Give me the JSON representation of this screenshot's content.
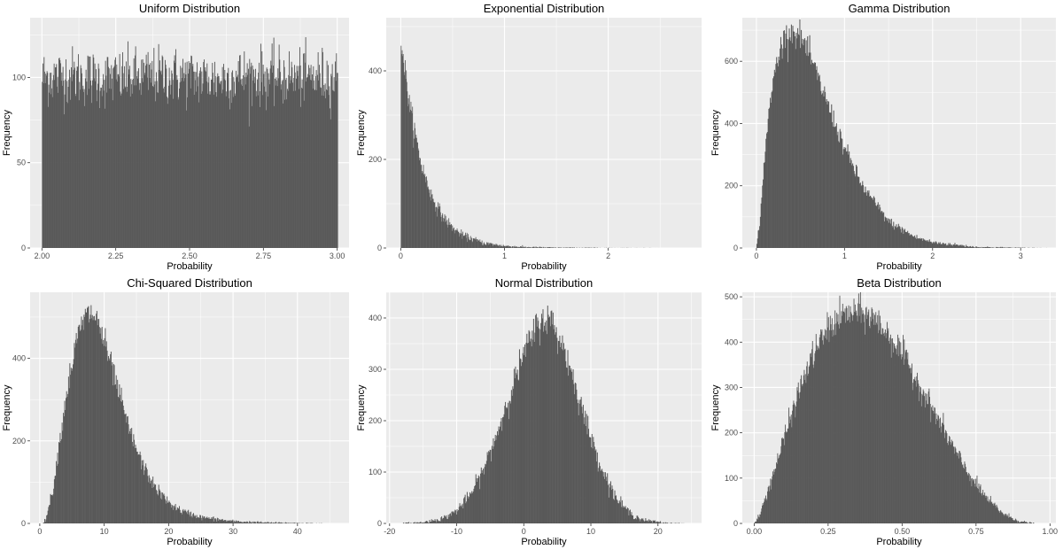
{
  "colors": {
    "panel_background": "#ebebeb",
    "grid_major": "#ffffff",
    "bar_fill": "#595959",
    "tick_text": "#4d4d4d"
  },
  "chart_data": [
    {
      "id": "uniform",
      "type": "histogram",
      "title": "Uniform Distribution",
      "xlabel": "Probability",
      "ylabel": "Frequency",
      "xlim": [
        1.96,
        3.04
      ],
      "ylim": [
        0,
        135
      ],
      "xticks": [
        2.0,
        2.25,
        2.5,
        2.75,
        3.0
      ],
      "xtick_labels": [
        "2.00",
        "2.25",
        "2.50",
        "2.75",
        "3.00"
      ],
      "yticks": [
        0,
        50,
        100
      ],
      "ytick_labels": [
        "0",
        "50",
        "100"
      ],
      "grid": true,
      "x_points": [
        2.0,
        2.1,
        2.2,
        2.3,
        2.4,
        2.5,
        2.6,
        2.7,
        2.8,
        2.9,
        3.0
      ],
      "density": [
        100,
        101,
        99,
        100,
        101,
        100,
        99,
        101,
        100,
        100,
        100
      ],
      "bin_width": 0.002
    },
    {
      "id": "exponential",
      "type": "histogram",
      "title": "Exponential Distribution",
      "xlabel": "Probability",
      "ylabel": "Frequency",
      "xlim": [
        -0.14,
        2.9
      ],
      "ylim": [
        0,
        520
      ],
      "xticks": [
        0,
        1,
        2
      ],
      "xtick_labels": [
        "0",
        "1",
        "2"
      ],
      "yticks": [
        0,
        200,
        400
      ],
      "ytick_labels": [
        "0",
        "200",
        "400"
      ],
      "grid": true,
      "x_points": [
        0,
        0.05,
        0.1,
        0.2,
        0.3,
        0.4,
        0.5,
        0.6,
        0.8,
        1.0,
        1.2,
        1.5,
        2.0,
        2.5
      ],
      "density": [
        480,
        380,
        300,
        185,
        115,
        72,
        45,
        28,
        11,
        4.5,
        1.8,
        0.6,
        0.1,
        0
      ],
      "bin_width": 0.005
    },
    {
      "id": "gamma",
      "type": "histogram",
      "title": "Gamma Distribution",
      "xlabel": "Probability",
      "ylabel": "Frequency",
      "xlim": [
        -0.16,
        3.4
      ],
      "ylim": [
        0,
        740
      ],
      "xticks": [
        0,
        1,
        2,
        3
      ],
      "xtick_labels": [
        "0",
        "1",
        "2",
        "3"
      ],
      "yticks": [
        0,
        200,
        400,
        600
      ],
      "ytick_labels": [
        "0",
        "200",
        "400",
        "600"
      ],
      "grid": true,
      "x_points": [
        0,
        0.05,
        0.1,
        0.2,
        0.3,
        0.4,
        0.5,
        0.6,
        0.8,
        1.0,
        1.2,
        1.5,
        1.8,
        2.0,
        2.5,
        3.0,
        3.3
      ],
      "density": [
        0,
        120,
        330,
        560,
        670,
        700,
        680,
        620,
        470,
        320,
        200,
        85,
        35,
        18,
        3,
        0.5,
        0
      ],
      "bin_width": 0.008
    },
    {
      "id": "chi-squared",
      "type": "histogram",
      "title": "Chi-Squared Distribution",
      "xlabel": "Probability",
      "ylabel": "Frequency",
      "xlim": [
        -1.5,
        48
      ],
      "ylim": [
        0,
        560
      ],
      "xticks": [
        0,
        10,
        20,
        30,
        40
      ],
      "xtick_labels": [
        "0",
        "10",
        "20",
        "30",
        "40"
      ],
      "yticks": [
        0,
        200,
        400
      ],
      "ytick_labels": [
        "0",
        "200",
        "400"
      ],
      "grid": true,
      "x_points": [
        0.5,
        1,
        2,
        3,
        4,
        5,
        6,
        7,
        8,
        9,
        10,
        12,
        14,
        16,
        18,
        20,
        22,
        25,
        30,
        35,
        44
      ],
      "density": [
        0,
        15,
        80,
        190,
        300,
        390,
        460,
        500,
        510,
        490,
        440,
        330,
        220,
        140,
        85,
        50,
        30,
        15,
        5,
        2,
        0
      ],
      "bin_width": 0.1
    },
    {
      "id": "normal",
      "type": "histogram",
      "title": "Normal Distribution",
      "xlabel": "Probability",
      "ylabel": "Frequency",
      "xlim": [
        -20.5,
        26.5
      ],
      "ylim": [
        0,
        450
      ],
      "xticks": [
        -20,
        -10,
        0,
        10,
        20
      ],
      "xtick_labels": [
        "-20",
        "-10",
        "0",
        "10",
        "20"
      ],
      "yticks": [
        0,
        100,
        200,
        300,
        400
      ],
      "ytick_labels": [
        "0",
        "100",
        "200",
        "300",
        "400"
      ],
      "grid": true,
      "x_points": [
        -18,
        -15,
        -12,
        -10,
        -8,
        -6,
        -4,
        -2,
        0,
        2,
        3,
        4,
        6,
        8,
        10,
        12,
        14,
        16,
        18,
        21,
        24
      ],
      "density": [
        0.5,
        2,
        10,
        25,
        55,
        105,
        175,
        255,
        330,
        385,
        400,
        395,
        340,
        255,
        165,
        95,
        45,
        18,
        6,
        1,
        0
      ],
      "bin_width": 0.1
    },
    {
      "id": "beta",
      "type": "histogram",
      "title": "Beta Distribution",
      "xlabel": "Probability",
      "ylabel": "Frequency",
      "xlim": [
        -0.04,
        1.02
      ],
      "ylim": [
        0,
        510
      ],
      "xticks": [
        0,
        0.25,
        0.5,
        0.75,
        1.0
      ],
      "xtick_labels": [
        "0.00",
        "0.25",
        "0.50",
        "0.75",
        "1.00"
      ],
      "yticks": [
        0,
        100,
        200,
        300,
        400,
        500
      ],
      "ytick_labels": [
        "0",
        "100",
        "200",
        "300",
        "400",
        "500"
      ],
      "grid": true,
      "x_points": [
        0,
        0.02,
        0.05,
        0.1,
        0.15,
        0.2,
        0.25,
        0.3,
        0.35,
        0.4,
        0.45,
        0.5,
        0.55,
        0.6,
        0.65,
        0.7,
        0.75,
        0.8,
        0.85,
        0.9,
        0.95
      ],
      "density": [
        0,
        20,
        80,
        185,
        290,
        375,
        430,
        460,
        465,
        455,
        420,
        375,
        315,
        255,
        195,
        135,
        85,
        45,
        18,
        4,
        0
      ],
      "bin_width": 0.002
    }
  ]
}
